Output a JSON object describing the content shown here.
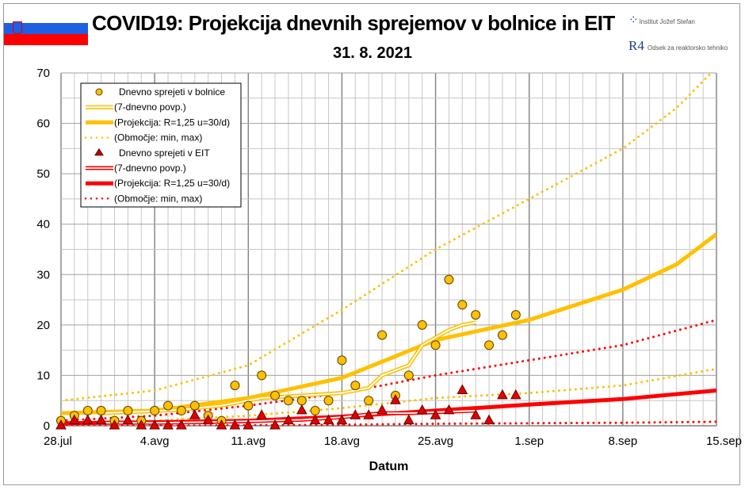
{
  "header": {
    "title": "COVID19: Projekcija dnevnih sprejemov v bolnice in EIT",
    "date": "31. 8. 2021",
    "logo_ijs": "Institut Jožef Stefan",
    "logo_r4": "Odsek za reaktorsko tehniko",
    "logo_r4_mark": "R4"
  },
  "colors": {
    "hospital": "#FFC000",
    "icu": "#FF0000",
    "grid_major": "#808080",
    "grid_minor": "#c8c8c8"
  },
  "chart_data": {
    "type": "line",
    "title": "COVID19: Projekcija dnevnih sprejemov v bolnice in EIT",
    "xlabel": "Datum",
    "ylabel": "",
    "ylim": [
      0,
      70
    ],
    "xlim_days": [
      0,
      49
    ],
    "yticks": [
      0,
      10,
      20,
      30,
      40,
      50,
      60,
      70
    ],
    "xticks": [
      {
        "day": 0,
        "label": "28.jul"
      },
      {
        "day": 7,
        "label": "4.avg"
      },
      {
        "day": 14,
        "label": "11.avg"
      },
      {
        "day": 21,
        "label": "18.avg"
      },
      {
        "day": 28,
        "label": "25.avg"
      },
      {
        "day": 35,
        "label": "1.sep"
      },
      {
        "day": 42,
        "label": "8.sep"
      },
      {
        "day": 49,
        "label": "15.sep"
      }
    ],
    "grid": true,
    "legend_position": "top-left",
    "series": [
      {
        "name": "Dnevno sprejeti v bolnice",
        "kind": "circle",
        "color": "#FFC000",
        "values": [
          1,
          2,
          3,
          3,
          1,
          3,
          1,
          3,
          4,
          3,
          4,
          2,
          1,
          8,
          4,
          10,
          6,
          5,
          5,
          3,
          5,
          13,
          8,
          5,
          18,
          6,
          10,
          20,
          16,
          29,
          24,
          22,
          16,
          18,
          22
        ]
      },
      {
        "name": "(7-dnevno povp.)",
        "kind": "double",
        "color": "#FFC000",
        "x": [
          3,
          6,
          9,
          12,
          15,
          18,
          21,
          23,
          24,
          25,
          26,
          27,
          28,
          29,
          30,
          31
        ],
        "values": [
          2.5,
          2.8,
          3.2,
          4,
          5.5,
          6,
          6.5,
          7.5,
          10,
          11,
          12,
          16,
          17.5,
          19,
          20,
          20.5
        ]
      },
      {
        "name": "(Projekcija: R=1,25 u=30/d)",
        "kind": "thick",
        "color": "#FFC000",
        "x": [
          0,
          7,
          14,
          21,
          28,
          35,
          42,
          46,
          49
        ],
        "values": [
          2.5,
          3,
          5.5,
          9.5,
          17,
          21,
          27,
          32,
          38
        ]
      },
      {
        "name": "(Območje: min, max)",
        "kind": "dotted",
        "color": "#FFC000",
        "x": [
          0,
          7,
          14,
          21,
          28,
          35,
          42,
          46,
          48.6
        ],
        "values": [
          5,
          7,
          12,
          23,
          35,
          45,
          55,
          63,
          70
        ]
      },
      {
        "name": "(Območje: min, max)",
        "kind": "dotted",
        "color": "#FFC000",
        "legend": false,
        "x": [
          0,
          7,
          14,
          21,
          28,
          35,
          42,
          49
        ],
        "values": [
          0.3,
          1,
          2,
          3.5,
          5.5,
          6.5,
          8,
          11.3
        ]
      },
      {
        "name": "Dnevno sprejeti v EIT",
        "kind": "triangle",
        "color": "#FF0000",
        "values": [
          0,
          1,
          1,
          1,
          0,
          1,
          0,
          0,
          0,
          0,
          2,
          1,
          0,
          0,
          0,
          2,
          0,
          1,
          3,
          1,
          1,
          1,
          2,
          2,
          3,
          5,
          1,
          3,
          2,
          3,
          7,
          2,
          1,
          6,
          6
        ]
      },
      {
        "name": "(7-dnevno povp.)",
        "kind": "double",
        "color": "#FF0000",
        "x": [
          3,
          7,
          10,
          14,
          18,
          21,
          24,
          26,
          28,
          31
        ],
        "values": [
          0.6,
          0.6,
          0.7,
          0.9,
          1.2,
          1.7,
          2.5,
          2.5,
          2.7,
          3
        ]
      },
      {
        "name": "(Projekcija: R=1,25 u=30/d)",
        "kind": "thick",
        "color": "#FF0000",
        "x": [
          0,
          7,
          14,
          21,
          28,
          35,
          42,
          49
        ],
        "values": [
          0.5,
          0.7,
          1,
          1.8,
          3,
          4.2,
          5.3,
          7
        ]
      },
      {
        "name": "(Območje: min, max)",
        "kind": "dotted",
        "color": "#FF0000",
        "x": [
          0,
          7,
          14,
          21,
          28,
          35,
          42,
          49
        ],
        "values": [
          1,
          2,
          4,
          6.5,
          10,
          13,
          16,
          21
        ]
      },
      {
        "name": "(Območje: min, max)",
        "kind": "dotted",
        "color": "#FF0000",
        "legend": false,
        "x": [
          0,
          7,
          14,
          21,
          28,
          35,
          42,
          49
        ],
        "values": [
          0,
          0,
          0.1,
          0.2,
          0.4,
          0.5,
          0.6,
          0.8
        ]
      }
    ]
  }
}
